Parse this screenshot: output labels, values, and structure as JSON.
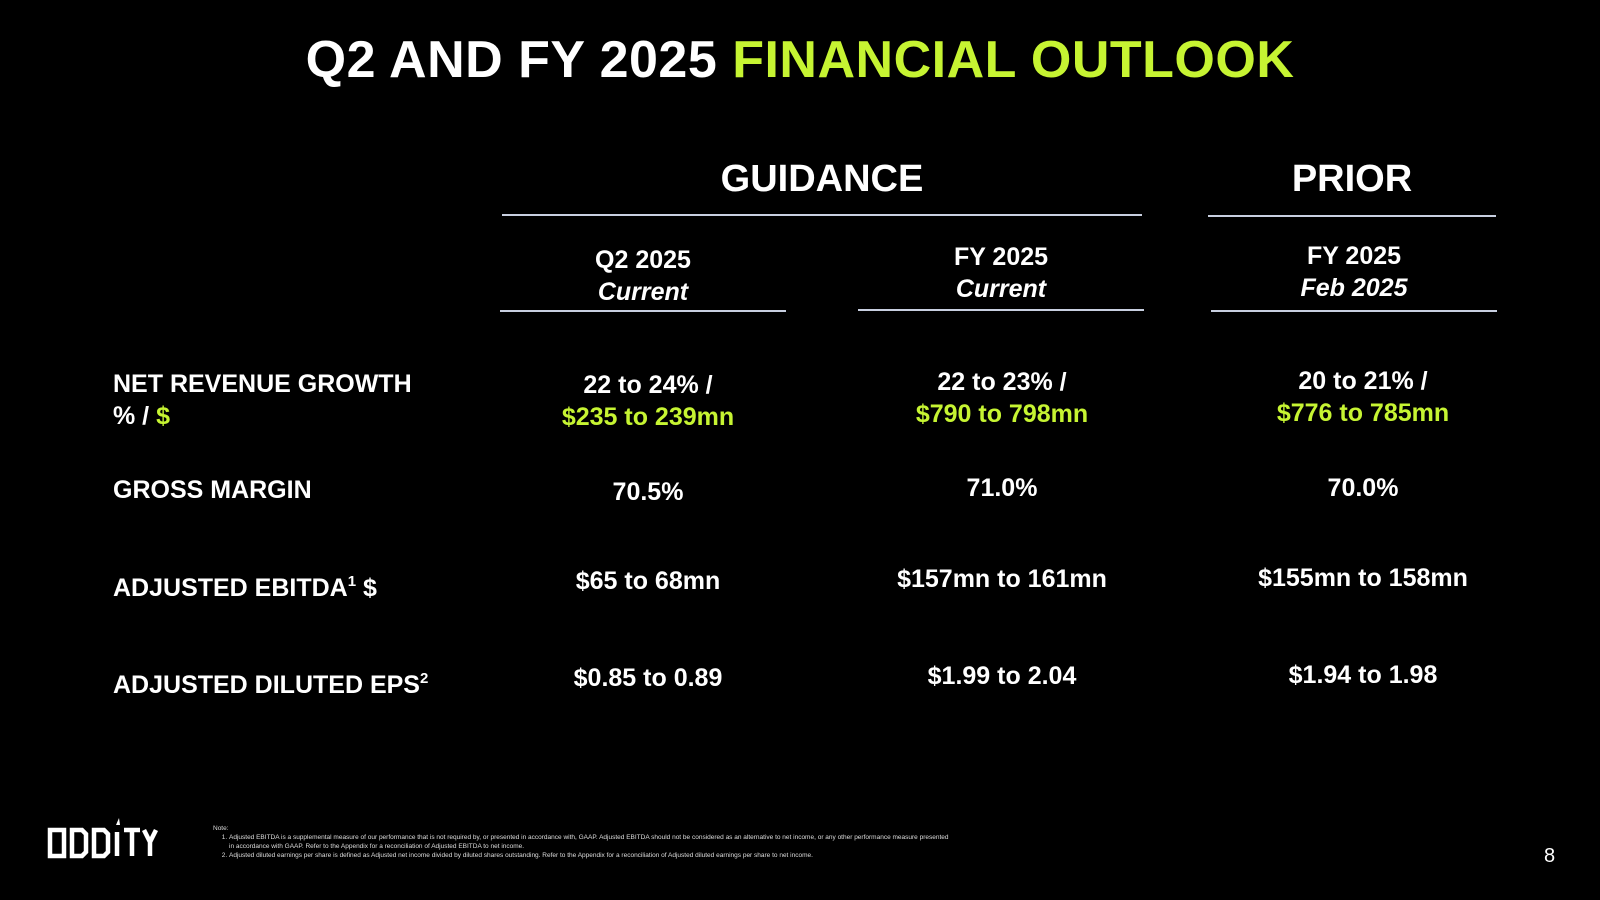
{
  "title": {
    "part1": "Q2 AND FY 2025",
    "part2": "FINANCIAL OUTLOOK"
  },
  "groups": {
    "guidance": "GUIDANCE",
    "prior": "PRIOR"
  },
  "columns": [
    {
      "line1": "Q2 2025",
      "line2": "Current"
    },
    {
      "line1": "FY 2025",
      "line2": "Current"
    },
    {
      "line1": "FY 2025",
      "line2": "Feb 2025"
    }
  ],
  "rows": [
    {
      "label_line1": "NET REVENUE GROWTH",
      "label_line2": "% / ",
      "label_accent": "$"
    },
    {
      "label": "GROSS MARGIN"
    },
    {
      "label": "ADJUSTED EBITDA",
      "sup": "1",
      "label_suffix": " $"
    },
    {
      "label": "ADJUSTED DILUTED EPS",
      "sup": "2"
    }
  ],
  "values": {
    "revenue": [
      {
        "pct": "22 to 24% /",
        "amt": "$235 to 239mn"
      },
      {
        "pct": "22 to 23% /",
        "amt": "$790 to 798mn"
      },
      {
        "pct": "20 to 21% /",
        "amt": "$776 to 785mn"
      }
    ],
    "gross_margin": [
      "70.5%",
      "71.0%",
      "70.0%"
    ],
    "ebitda": [
      "$65 to 68mn",
      "$157mn to 161mn",
      "$155mn to 158mn"
    ],
    "eps": [
      "$0.85 to 0.89",
      "$1.99 to 2.04",
      "$1.94 to 1.98"
    ]
  },
  "footer": {
    "logo_text": "ODDITY",
    "note_heading": "Note:",
    "notes": [
      "Adjusted EBITDA is a supplemental measure of our performance that is not required by, or presented in accordance with, GAAP. Adjusted EBITDA should not be considered as an alternative to net income, or any other performance measure presented in accordance with GAAP. Refer to the Appendix for a reconciliation of Adjusted EBITDA to net income.",
      "Adjusted diluted earnings per share is defined as Adjusted net income divided by diluted shares outstanding. Refer to the Appendix for a reconciliation of Adjusted diluted earnings per share to net income."
    ],
    "page_number": "8"
  },
  "colors": {
    "accent": "#c6f432",
    "background": "#000000",
    "text": "#ffffff"
  }
}
